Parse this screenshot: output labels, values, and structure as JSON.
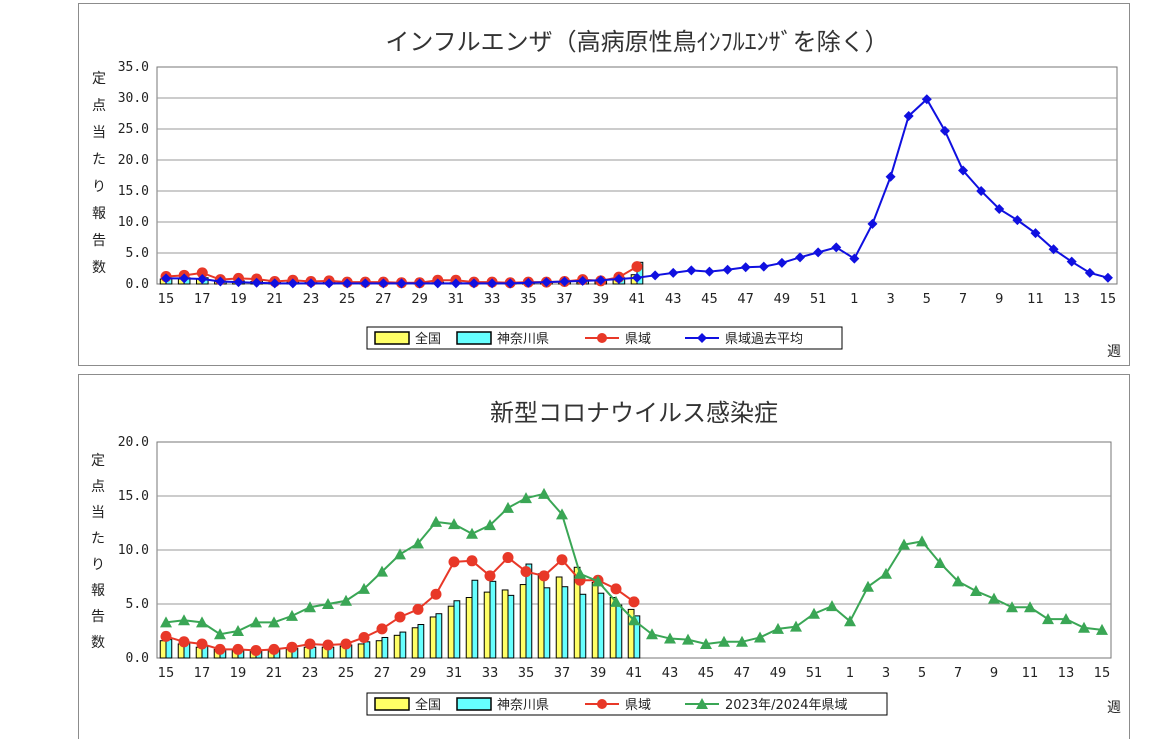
{
  "chart_data": [
    {
      "type": "bar+line",
      "title": "インフルエンザ（高病原性鳥ｲﾝﾌﾙｴﾝｻﾞを除く）",
      "ylabel": "定点当たり報告数",
      "xlabel": "週",
      "ylim": [
        0,
        35
      ],
      "yticks": [
        "35.0",
        "30.0",
        "25.0",
        "20.0",
        "15.0",
        "10.0",
        "5.0",
        "0.0"
      ],
      "x_categories": [
        "15",
        "16",
        "17",
        "18",
        "19",
        "20",
        "21",
        "22",
        "23",
        "24",
        "25",
        "26",
        "27",
        "28",
        "29",
        "30",
        "31",
        "32",
        "33",
        "34",
        "35",
        "36",
        "37",
        "38",
        "39",
        "40",
        "41",
        "42",
        "43",
        "44",
        "45",
        "46",
        "47",
        "48",
        "49",
        "50",
        "51",
        "52",
        "1",
        "2",
        "3",
        "4",
        "5",
        "6",
        "7",
        "8",
        "9",
        "10",
        "11",
        "12",
        "13",
        "14",
        "15"
      ],
      "x_tick_labels": [
        "15",
        "17",
        "19",
        "21",
        "23",
        "25",
        "27",
        "29",
        "31",
        "33",
        "35",
        "37",
        "39",
        "41",
        "43",
        "45",
        "47",
        "49",
        "51",
        "1",
        "3",
        "5",
        "7",
        "9",
        "11",
        "13",
        "15"
      ],
      "legend": [
        "全国",
        "神奈川県",
        "県域",
        "県域過去平均"
      ],
      "grid": true,
      "series": [
        {
          "name": "全国",
          "kind": "bar",
          "color": "#ffff66",
          "values": [
            0.8,
            0.8,
            0.8,
            0.4,
            0.4,
            0.4,
            0.3,
            0.3,
            0.3,
            0.3,
            0.2,
            0.2,
            0.2,
            0.2,
            0.2,
            0.2,
            0.2,
            0.2,
            0.2,
            0.2,
            0.2,
            0.3,
            0.3,
            0.3,
            0.5,
            0.8,
            1.5
          ]
        },
        {
          "name": "神奈川県",
          "kind": "bar",
          "color": "#66ffff",
          "values": [
            0.9,
            1.0,
            1.0,
            0.4,
            0.5,
            0.5,
            0.3,
            0.3,
            0.3,
            0.3,
            0.2,
            0.2,
            0.2,
            0.2,
            0.3,
            0.3,
            0.2,
            0.2,
            0.2,
            0.2,
            0.3,
            0.3,
            0.4,
            0.5,
            0.6,
            1.0,
            3.5
          ]
        },
        {
          "name": "県域",
          "kind": "line",
          "color": "#e83828",
          "values": [
            1.2,
            1.4,
            1.8,
            0.7,
            0.9,
            0.8,
            0.4,
            0.6,
            0.4,
            0.5,
            0.3,
            0.3,
            0.3,
            0.2,
            0.2,
            0.6,
            0.6,
            0.3,
            0.3,
            0.2,
            0.3,
            0.3,
            0.4,
            0.7,
            0.5,
            1.1,
            2.8
          ]
        },
        {
          "name": "県域過去平均",
          "kind": "line",
          "color": "#1010e0",
          "values": [
            0.9,
            0.9,
            0.8,
            0.4,
            0.3,
            0.2,
            0.1,
            0.1,
            0.1,
            0.1,
            0.1,
            0.1,
            0.1,
            0.1,
            0.1,
            0.1,
            0.1,
            0.1,
            0.1,
            0.1,
            0.2,
            0.3,
            0.4,
            0.5,
            0.6,
            0.8,
            1.0,
            1.4,
            1.8,
            2.2,
            2.0,
            2.3,
            2.7,
            2.8,
            3.4,
            4.3,
            5.1,
            5.9,
            4.1,
            9.7,
            17.3,
            27.1,
            29.8,
            24.7,
            18.3,
            15.0,
            12.1,
            10.3,
            8.2,
            5.6,
            3.6,
            1.8,
            1.0
          ]
        }
      ]
    },
    {
      "type": "bar+line",
      "title": "新型コロナウイルス感染症",
      "ylabel": "定点当たり報告数",
      "xlabel": "週",
      "ylim": [
        0,
        20
      ],
      "yticks": [
        "20.0",
        "15.0",
        "10.0",
        "5.0",
        "0.0"
      ],
      "x_categories": [
        "15",
        "16",
        "17",
        "18",
        "19",
        "20",
        "21",
        "22",
        "23",
        "24",
        "25",
        "26",
        "27",
        "28",
        "29",
        "30",
        "31",
        "32",
        "33",
        "34",
        "35",
        "36",
        "37",
        "38",
        "39",
        "40",
        "41",
        "42",
        "43",
        "44",
        "45",
        "46",
        "47",
        "48",
        "49",
        "50",
        "51",
        "52",
        "1",
        "2",
        "3",
        "4",
        "5",
        "6",
        "7",
        "8",
        "9",
        "10",
        "11",
        "12",
        "13",
        "14",
        "15"
      ],
      "x_tick_labels": [
        "15",
        "17",
        "19",
        "21",
        "23",
        "25",
        "27",
        "29",
        "31",
        "33",
        "35",
        "37",
        "39",
        "41",
        "43",
        "45",
        "47",
        "49",
        "51",
        "1",
        "3",
        "5",
        "7",
        "9",
        "11",
        "13",
        "15"
      ],
      "legend": [
        "全国",
        "神奈川県",
        "県域",
        "2023年/2024年県域"
      ],
      "grid": true,
      "series": [
        {
          "name": "全国",
          "kind": "bar",
          "color": "#ffff66",
          "values": [
            1.6,
            1.3,
            1.0,
            0.8,
            0.7,
            0.7,
            0.8,
            0.9,
            1.0,
            1.0,
            1.1,
            1.3,
            1.6,
            2.1,
            2.8,
            3.8,
            4.8,
            5.6,
            6.1,
            6.3,
            6.8,
            7.8,
            7.5,
            8.4,
            7.0,
            5.6,
            4.5
          ]
        },
        {
          "name": "神奈川県",
          "kind": "bar",
          "color": "#66ffff",
          "values": [
            1.7,
            1.4,
            1.1,
            0.8,
            0.7,
            0.7,
            0.8,
            0.9,
            1.0,
            1.0,
            1.2,
            1.5,
            1.9,
            2.4,
            3.1,
            4.1,
            5.3,
            7.2,
            7.1,
            5.8,
            8.7,
            6.5,
            6.6,
            5.9,
            6.0,
            4.9,
            3.9
          ]
        },
        {
          "name": "県域",
          "kind": "line",
          "color": "#e83828",
          "values": [
            2.0,
            1.5,
            1.3,
            0.8,
            0.8,
            0.7,
            0.8,
            1.0,
            1.3,
            1.2,
            1.3,
            1.9,
            2.7,
            3.8,
            4.5,
            5.9,
            8.9,
            9.0,
            7.6,
            9.3,
            8.0,
            7.6,
            9.1,
            7.2,
            7.2,
            6.4,
            5.2
          ]
        },
        {
          "name": "2023年/2024年県域",
          "kind": "line",
          "color": "#3aa655",
          "values": [
            3.3,
            3.5,
            3.3,
            2.2,
            2.5,
            3.3,
            3.3,
            3.9,
            4.7,
            5.0,
            5.3,
            6.4,
            8.0,
            9.6,
            10.6,
            12.6,
            12.4,
            11.5,
            12.3,
            13.9,
            14.8,
            15.2,
            13.3,
            7.8,
            7.1,
            5.2,
            3.5,
            2.2,
            1.8,
            1.7,
            1.3,
            1.5,
            1.5,
            1.9,
            2.7,
            2.9,
            4.1,
            4.8,
            3.4,
            6.6,
            7.8,
            10.5,
            10.8,
            8.8,
            7.1,
            6.2,
            5.5,
            4.7,
            4.7,
            3.6,
            3.6,
            2.8,
            2.6
          ]
        }
      ]
    }
  ]
}
